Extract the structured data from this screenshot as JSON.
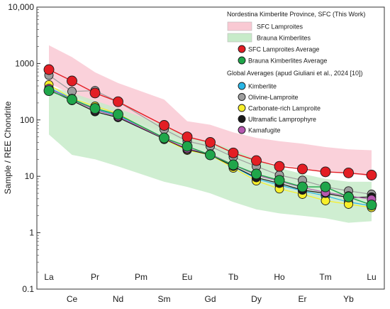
{
  "chart_data": {
    "type": "line",
    "ylabel": "Sample / REE  Chondrite",
    "yscale": "log",
    "ylim": [
      0.1,
      10000
    ],
    "y_ticks": [
      "0.1",
      "1",
      "10",
      "100",
      "1000",
      "10,000"
    ],
    "grid": false,
    "legend_position": "top-right",
    "categories": [
      "La",
      "Ce",
      "Pr",
      "Nd",
      "Pm",
      "Sm",
      "Eu",
      "Gd",
      "Tb",
      "Dy",
      "Ho",
      "Er",
      "Tm",
      "Yb",
      "Lu"
    ],
    "legend": {
      "group1_title": "Nordestina Kimberlite Province, SFC (This Work)",
      "group2_title": "Global Averages (apud Giuliani et al., 2024 [10])"
    },
    "fields": [
      {
        "name": "SFC Lamproites",
        "fill": "#f9c9d3",
        "upper": [
          2100,
          1300,
          700,
          450,
          null,
          230,
          95,
          82,
          60,
          48,
          42,
          38,
          33,
          30,
          29
        ],
        "lower": [
          450,
          280,
          180,
          120,
          null,
          60,
          40,
          32,
          24,
          19,
          16,
          14,
          12,
          11,
          10
        ]
      },
      {
        "name": "Brauna Kimberlites",
        "fill": "#c7ebc9",
        "upper": [
          400,
          300,
          220,
          160,
          null,
          80,
          50,
          40,
          30,
          20,
          14,
          11,
          9,
          8,
          8
        ],
        "lower": [
          55,
          24,
          20,
          15,
          null,
          8,
          6.5,
          5,
          3.5,
          2.6,
          2.2,
          2.0,
          1.8,
          1.5,
          1.6
        ]
      }
    ],
    "series": [
      {
        "name": "Kimberlite",
        "color": "#29b6e6",
        "values": [
          370,
          240,
          155,
          120,
          null,
          48,
          30,
          24,
          15,
          9,
          7,
          5.5,
          4.5,
          3.5,
          3.0
        ]
      },
      {
        "name": "Olivine-Lamproite",
        "color": "#9e9e9e",
        "values": [
          620,
          320,
          330,
          210,
          null,
          68,
          42,
          34,
          22,
          15,
          10.5,
          8.5,
          6.5,
          5.5,
          4.8
        ]
      },
      {
        "name": "Carbonate-rich Lamproite",
        "color": "#f7ef2b",
        "values": [
          420,
          240,
          175,
          130,
          null,
          45,
          29,
          24,
          14,
          8.3,
          6.0,
          4.8,
          3.7,
          3.2,
          2.8
        ]
      },
      {
        "name": "Ultramafic Lamprophyre",
        "color": "#1a1a1a",
        "values": [
          340,
          220,
          140,
          110,
          null,
          46,
          30,
          24,
          15,
          9.5,
          7.5,
          5.7,
          5.0,
          4.2,
          4.3
        ]
      },
      {
        "name": "Kamafugite",
        "color": "#b658b0",
        "values": [
          360,
          230,
          150,
          115,
          null,
          47,
          31,
          25,
          16,
          10.5,
          8.2,
          6.3,
          5.2,
          4.5,
          3.9
        ]
      },
      {
        "name": "SFC Lamproites Average",
        "color": "#e31e24",
        "values": [
          780,
          490,
          300,
          210,
          null,
          80,
          50,
          40,
          26,
          19,
          15,
          13.5,
          12,
          11.5,
          10.5
        ]
      },
      {
        "name": "Brauna Kimberlites Average",
        "color": "#1fa64a",
        "values": [
          330,
          230,
          160,
          125,
          null,
          48,
          34,
          24,
          16,
          11,
          8.5,
          6.5,
          6.5,
          4.3,
          3.1
        ]
      }
    ]
  }
}
